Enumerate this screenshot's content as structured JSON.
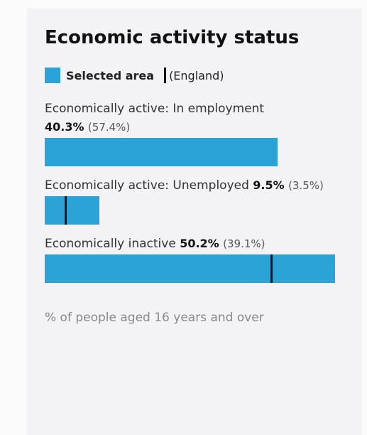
{
  "chart_data": {
    "type": "bar",
    "title": "Economic activity status",
    "categories": [
      "Economically active: In employment",
      "Economically active: Unemployed",
      "Economically inactive"
    ],
    "series": [
      {
        "name": "Selected area",
        "color": "#2ba3d6",
        "values": [
          40.3,
          9.5,
          50.2
        ],
        "value_labels": [
          "40.3%",
          "9.5%",
          "50.2%"
        ]
      },
      {
        "name": "(England)",
        "color": "#111111",
        "values": [
          57.4,
          3.5,
          39.1
        ],
        "value_labels": [
          "(57.4%)",
          "(3.5%)",
          "(39.1%)"
        ]
      }
    ],
    "xlim": [
      0,
      50.2
    ],
    "footnote": "% of people aged 16 years and over"
  }
}
